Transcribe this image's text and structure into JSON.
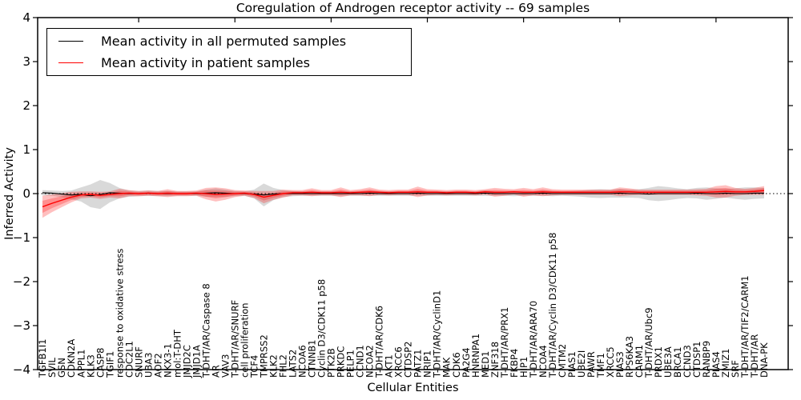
{
  "chart_data": {
    "type": "line",
    "title": "Coregulation of Androgen receptor activity -- 69 samples",
    "xlabel": "Cellular Entities",
    "ylabel": "Inferred Activity",
    "ylim": [
      -4,
      4
    ],
    "yticks": [
      4,
      3,
      2,
      1,
      0,
      -1,
      -2,
      -3,
      -4
    ],
    "grid": false,
    "legend_position": "upper left",
    "zero_line": {
      "style": "dotted",
      "color": "#000000",
      "y": 0
    },
    "categories": [
      "TGFB1I1",
      "SVIL",
      "GSN",
      "CDKN2A",
      "APPL1",
      "KLK3",
      "CASP8",
      "TGIF1",
      "response to oxidative stress",
      "CDC2L1",
      "SNURF",
      "UBA3",
      "AOF2",
      "NKX3-1",
      "mol:T-DHT",
      "JMJD2C",
      "JMJD1A",
      "T-DHT/AR/Caspase 8",
      "AR",
      "VAV3",
      "T-DHT/AR/SNURF",
      "cell proliferation",
      "TCF4",
      "TMPRSS2",
      "KLK2",
      "FHL2",
      "LATS2",
      "NCOA6",
      "CTNNB1",
      "Cyclin D3/CDK11 p58",
      "PTK2B",
      "PRKDC",
      "PELP1",
      "CCND1",
      "NCOA2",
      "T-DHT/AR/CDK6",
      "AKT1",
      "XRCC6",
      "CTDSP2",
      "PATZ1",
      "NRIP1",
      "T-DHT/AR/CyclinD1",
      "MAK",
      "CDK6",
      "PA2G4",
      "HNRNPA1",
      "MED1",
      "ZNF318",
      "T-DHT/AR/PRX1",
      "FKBP4",
      "HIP1",
      "T-DHT/AR/ARA70",
      "NCOA4",
      "T-DHT/AR/Cyclin D3/CDK11 p58",
      "CMTM2",
      "PIAS1",
      "UBE2I",
      "PAWR",
      "TMF1",
      "XRCC5",
      "PIAS3",
      "RPS6KA3",
      "CARM1",
      "T-DHT/AR/Ubc9",
      "PRDX1",
      "UBE3A",
      "BRCA1",
      "CCND3",
      "CTDSP1",
      "RANBP9",
      "PIAS4",
      "ZMIZ1",
      "SRF",
      "T-DHT/AR/TIF2/CARM1",
      "T-DHT/AR",
      "DNA-PK"
    ],
    "series": [
      {
        "name": "Mean activity in all permuted samples",
        "color": "#000000",
        "band_color": "#000000",
        "band_opacity": 0.15,
        "values": [
          0.02,
          0.01,
          -0.01,
          -0.03,
          -0.02,
          -0.05,
          -0.02,
          0.02,
          0.01,
          0.0,
          0.0,
          0.01,
          0.0,
          0.0,
          0.0,
          0.0,
          0.0,
          0.01,
          0.02,
          0.01,
          0.0,
          0.0,
          -0.01,
          -0.03,
          -0.01,
          0.0,
          0.0,
          0.0,
          0.0,
          0.0,
          0.0,
          0.0,
          0.0,
          0.0,
          0.01,
          0.0,
          0.0,
          0.0,
          0.0,
          0.01,
          0.0,
          0.0,
          0.0,
          0.0,
          0.0,
          0.0,
          0.01,
          0.0,
          0.0,
          0.0,
          0.0,
          0.0,
          0.01,
          0.0,
          0.0,
          0.0,
          0.0,
          0.0,
          0.0,
          0.0,
          0.01,
          0.0,
          0.0,
          -0.01,
          0.0,
          0.0,
          0.0,
          0.0,
          0.01,
          0.0,
          0.0,
          0.01,
          0.0,
          0.0,
          0.01,
          0.01
        ],
        "band_halfwidth": [
          0.06,
          0.06,
          0.07,
          0.1,
          0.16,
          0.26,
          0.33,
          0.22,
          0.12,
          0.07,
          0.06,
          0.06,
          0.06,
          0.06,
          0.05,
          0.05,
          0.05,
          0.08,
          0.1,
          0.08,
          0.06,
          0.05,
          0.1,
          0.26,
          0.14,
          0.08,
          0.06,
          0.05,
          0.05,
          0.05,
          0.05,
          0.06,
          0.05,
          0.05,
          0.06,
          0.05,
          0.05,
          0.05,
          0.05,
          0.06,
          0.05,
          0.05,
          0.05,
          0.05,
          0.05,
          0.05,
          0.06,
          0.05,
          0.05,
          0.06,
          0.05,
          0.05,
          0.06,
          0.06,
          0.05,
          0.06,
          0.07,
          0.09,
          0.1,
          0.09,
          0.1,
          0.09,
          0.1,
          0.14,
          0.17,
          0.15,
          0.12,
          0.1,
          0.12,
          0.14,
          0.12,
          0.1,
          0.12,
          0.14,
          0.13,
          0.12
        ]
      },
      {
        "name": "Mean activity in patient samples",
        "color": "#ff0000",
        "band_color": "#ff0000",
        "band_opacity": 0.25,
        "values": [
          -0.3,
          -0.22,
          -0.15,
          -0.08,
          -0.03,
          -0.02,
          -0.04,
          -0.02,
          0.0,
          0.01,
          0.0,
          0.01,
          0.0,
          0.01,
          0.0,
          0.0,
          0.01,
          0.0,
          -0.02,
          -0.01,
          0.0,
          0.01,
          -0.02,
          -0.08,
          -0.04,
          0.0,
          0.02,
          0.02,
          0.03,
          0.02,
          0.02,
          0.03,
          0.02,
          0.03,
          0.04,
          0.03,
          0.02,
          0.03,
          0.03,
          0.04,
          0.03,
          0.03,
          0.02,
          0.03,
          0.03,
          0.02,
          0.04,
          0.03,
          0.03,
          0.04,
          0.03,
          0.03,
          0.04,
          0.03,
          0.03,
          0.03,
          0.03,
          0.03,
          0.03,
          0.03,
          0.04,
          0.04,
          0.03,
          0.03,
          0.03,
          0.03,
          0.03,
          0.03,
          0.03,
          0.03,
          0.04,
          0.05,
          0.04,
          0.04,
          0.05,
          0.07
        ],
        "band_halfwidth": [
          0.25,
          0.2,
          0.16,
          0.12,
          0.08,
          0.07,
          0.08,
          0.07,
          0.11,
          0.07,
          0.06,
          0.06,
          0.06,
          0.09,
          0.06,
          0.06,
          0.06,
          0.13,
          0.16,
          0.13,
          0.08,
          0.06,
          0.08,
          0.14,
          0.1,
          0.09,
          0.06,
          0.06,
          0.09,
          0.06,
          0.06,
          0.11,
          0.06,
          0.07,
          0.1,
          0.06,
          0.06,
          0.06,
          0.06,
          0.12,
          0.07,
          0.06,
          0.06,
          0.06,
          0.06,
          0.06,
          0.06,
          0.1,
          0.08,
          0.06,
          0.1,
          0.07,
          0.1,
          0.07,
          0.06,
          0.06,
          0.06,
          0.06,
          0.06,
          0.06,
          0.1,
          0.08,
          0.06,
          0.06,
          0.06,
          0.06,
          0.06,
          0.06,
          0.07,
          0.08,
          0.13,
          0.14,
          0.09,
          0.07,
          0.08,
          0.1
        ]
      }
    ]
  }
}
